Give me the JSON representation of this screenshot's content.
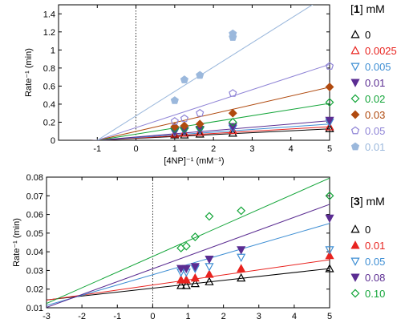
{
  "chart_data": [
    {
      "type": "scatter",
      "panel": "top",
      "xlabel": "[4NP]⁻¹ (mM⁻¹)",
      "ylabel": "Rate⁻¹ (min)",
      "xlim": [
        -2,
        5
      ],
      "ylim": [
        0,
        1.5
      ],
      "xticks": [
        "-1",
        "0",
        "1",
        "2",
        "3",
        "4",
        "5"
      ],
      "yticks": [
        "0",
        "0.2",
        "0.4",
        "0.6",
        "0.8",
        "1",
        "1.2",
        "1.4"
      ],
      "legend": {
        "compound": "1",
        "unit": "mM",
        "position": "right"
      },
      "reference_line_x": 0,
      "series": [
        {
          "name": "0",
          "color": "#000000",
          "marker": "triangle-up-open",
          "x": [
            1,
            1.25,
            1.65,
            2.5,
            5
          ],
          "y": [
            0.06,
            0.06,
            0.07,
            0.08,
            0.13
          ],
          "fit": {
            "slope": 0.021,
            "intercept": 0.021
          }
        },
        {
          "name": "0.0025",
          "color": "#e8231f",
          "marker": "triangle-up-open",
          "x": [
            1,
            1.25,
            1.65,
            2.5,
            5
          ],
          "y": [
            0.07,
            0.08,
            0.09,
            0.11,
            0.15
          ],
          "fit": {
            "slope": 0.025,
            "intercept": 0.025
          }
        },
        {
          "name": "0.005",
          "color": "#3f8fd4",
          "marker": "triangle-down-open",
          "x": [
            1,
            1.25,
            1.65,
            2.5,
            5
          ],
          "y": [
            0.09,
            0.1,
            0.11,
            0.13,
            0.2
          ],
          "fit": {
            "slope": 0.03,
            "intercept": 0.03
          }
        },
        {
          "name": "0.01",
          "color": "#5b2d92",
          "marker": "triangle-down-filled",
          "x": [
            1,
            1.25,
            1.65,
            2.5,
            5
          ],
          "y": [
            0.1,
            0.11,
            0.12,
            0.15,
            0.22
          ],
          "fit": {
            "slope": 0.036,
            "intercept": 0.036
          }
        },
        {
          "name": "0.02",
          "color": "#13a539",
          "marker": "diamond-open",
          "x": [
            1,
            1.25,
            1.65,
            2.5,
            5
          ],
          "y": [
            0.13,
            0.13,
            0.14,
            0.2,
            0.42
          ],
          "fit": {
            "slope": 0.068,
            "intercept": 0.068
          }
        },
        {
          "name": "0.03",
          "color": "#b04a0f",
          "marker": "diamond-filled",
          "x": [
            1,
            1.25,
            1.65,
            2.5,
            5
          ],
          "y": [
            0.15,
            0.16,
            0.18,
            0.3,
            0.59
          ],
          "fit": {
            "slope": 0.098,
            "intercept": 0.098
          }
        },
        {
          "name": "0.05",
          "color": "#8f84d6",
          "marker": "pentagon-open",
          "x": [
            1,
            1.25,
            1.65,
            2.5,
            5
          ],
          "y": [
            0.21,
            0.24,
            0.3,
            0.52,
            0.82
          ],
          "fit": {
            "slope": 0.14,
            "intercept": 0.14
          }
        },
        {
          "name": "0.01",
          "color": "#9bb8dc",
          "marker": "pentagon-filled",
          "x": [
            1,
            1.25,
            1.65,
            2.5,
            2.5
          ],
          "y": [
            0.44,
            0.67,
            0.72,
            1.14,
            1.18
          ],
          "fit": {
            "slope": 0.27,
            "intercept": 0.27
          }
        }
      ]
    },
    {
      "type": "scatter",
      "panel": "bottom",
      "xlabel": "[4NP]⁻¹ (mM⁻¹)",
      "ylabel": "Rate⁻¹ (min)",
      "xlim": [
        -3,
        5
      ],
      "ylim": [
        0.01,
        0.08
      ],
      "xticks": [
        "-3",
        "-2",
        "-1",
        "0",
        "1",
        "2",
        "3",
        "4",
        "5"
      ],
      "yticks": [
        "0.01",
        "0.02",
        "0.03",
        "0.04",
        "0.05",
        "0.06",
        "0.07",
        "0.08"
      ],
      "legend": {
        "compound": "3",
        "unit": "mM",
        "position": "right"
      },
      "reference_line_x": 0,
      "series": [
        {
          "name": "0",
          "color": "#000000",
          "marker": "triangle-up-open",
          "x": [
            0.8,
            0.95,
            1.2,
            1.6,
            2.5,
            5
          ],
          "y": [
            0.022,
            0.022,
            0.023,
            0.024,
            0.026,
            0.031
          ],
          "fit": {
            "slope": 0.0021,
            "intercept": 0.0205
          }
        },
        {
          "name": "0.01",
          "color": "#e8231f",
          "marker": "triangle-up-filled",
          "x": [
            0.8,
            0.95,
            1.2,
            1.6,
            2.5,
            5
          ],
          "y": [
            0.025,
            0.025,
            0.026,
            0.028,
            0.031,
            0.038
          ],
          "fit": {
            "slope": 0.0027,
            "intercept": 0.0222
          }
        },
        {
          "name": "0.05",
          "color": "#3f8fd4",
          "marker": "triangle-down-open",
          "x": [
            0.8,
            0.95,
            1.2,
            1.6,
            2.5,
            5
          ],
          "y": [
            0.029,
            0.029,
            0.031,
            0.032,
            0.037,
            0.041
          ],
          "fit": {
            "slope": 0.0055,
            "intercept": 0.0277
          }
        },
        {
          "name": "0.08",
          "color": "#5b2d92",
          "marker": "triangle-down-filled",
          "x": [
            0.8,
            0.95,
            1.2,
            1.6,
            2.5,
            5
          ],
          "y": [
            0.031,
            0.031,
            0.032,
            0.036,
            0.041,
            0.058
          ],
          "fit": {
            "slope": 0.0069,
            "intercept": 0.0309
          }
        },
        {
          "name": "0.10",
          "color": "#13a539",
          "marker": "diamond-open",
          "x": [
            0.8,
            0.95,
            1.2,
            1.6,
            2.5,
            5
          ],
          "y": [
            0.042,
            0.043,
            0.048,
            0.059,
            0.062,
            0.07
          ],
          "fit": {
            "slope": 0.0084,
            "intercept": 0.0375
          }
        }
      ]
    }
  ]
}
